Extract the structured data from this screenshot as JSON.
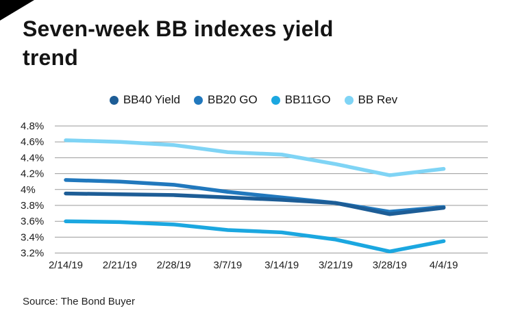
{
  "header": {
    "title": "Seven-week BB indexes yield trend"
  },
  "footer": {
    "source": "Source: The Bond Buyer"
  },
  "colors": {
    "corner_accent": "#000000",
    "grid": "#9a9a9a",
    "text": "#1a1a1a"
  },
  "chart_data": {
    "type": "line",
    "title": "Seven-week BB indexes yield trend",
    "x": [
      "2/14/19",
      "2/21/19",
      "2/28/19",
      "3/7/19",
      "3/14/19",
      "3/21/19",
      "3/28/19",
      "4/4/19"
    ],
    "yticks": [
      {
        "value": 4.8,
        "label": "4.8%"
      },
      {
        "value": 4.6,
        "label": "4.6%"
      },
      {
        "value": 4.4,
        "label": "4.4%"
      },
      {
        "value": 4.2,
        "label": "4.2%"
      },
      {
        "value": 4.0,
        "label": "4%"
      },
      {
        "value": 3.8,
        "label": "3.8%"
      },
      {
        "value": 3.6,
        "label": "3.6%"
      },
      {
        "value": 3.4,
        "label": "3.4%"
      },
      {
        "value": 3.2,
        "label": "3.2%"
      }
    ],
    "ylim": [
      3.2,
      4.8
    ],
    "grid": true,
    "legend_position": "top",
    "series": [
      {
        "name": "BB40 Yield",
        "color": "#1d5d96",
        "values": [
          3.95,
          3.94,
          3.93,
          3.9,
          3.87,
          3.83,
          3.69,
          3.77
        ]
      },
      {
        "name": "BB20 GO",
        "color": "#2178bd",
        "values": [
          4.12,
          4.1,
          4.06,
          3.97,
          3.9,
          3.83,
          3.72,
          3.78
        ]
      },
      {
        "name": "BB11GO",
        "color": "#1ba7e0",
        "values": [
          3.6,
          3.59,
          3.56,
          3.49,
          3.46,
          3.37,
          3.22,
          3.35
        ]
      },
      {
        "name": "BB Rev",
        "color": "#7fd4f5",
        "values": [
          4.62,
          4.6,
          4.56,
          4.47,
          4.44,
          4.32,
          4.18,
          4.26
        ]
      }
    ]
  }
}
